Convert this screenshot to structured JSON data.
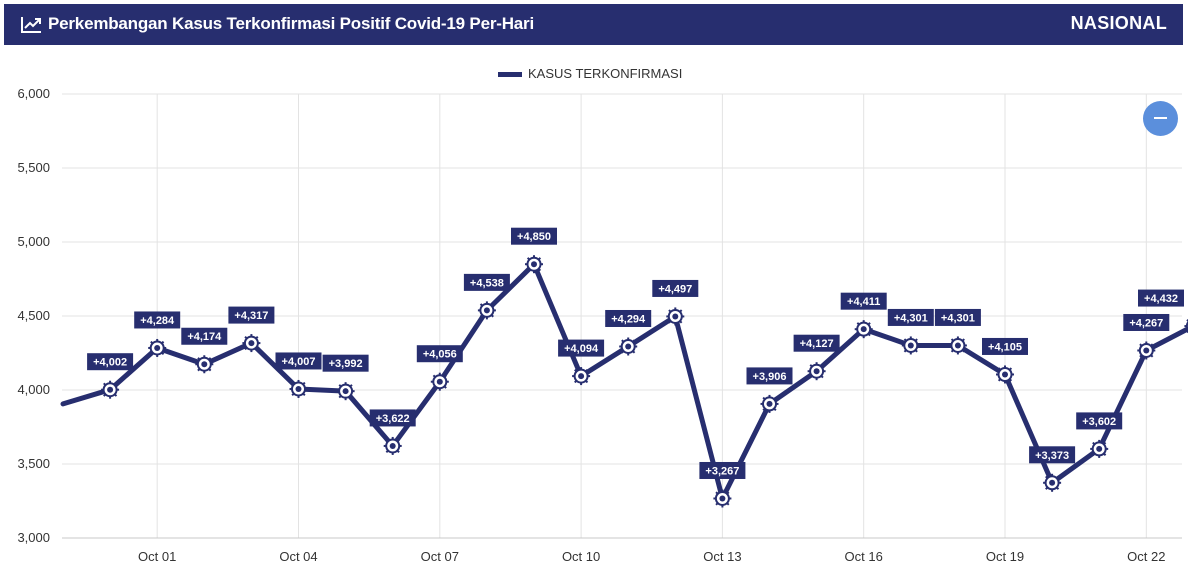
{
  "header": {
    "title": "Perkembangan Kasus Terkonfirmasi Positif Covid-19 Per-Hari",
    "scope": "NASIONAL",
    "icon": "line-chart-icon"
  },
  "zoom_button": {
    "icon": "minus-icon"
  },
  "colors": {
    "header_bg": "#272e6f",
    "series": "#272e6f",
    "label_bg": "#272e6f",
    "zoom": "#5b8fdc",
    "grid": "#e3e3e3"
  },
  "chart_data": {
    "type": "line",
    "title": "Perkembangan Kasus Terkonfirmasi Positif Covid-19 Per-Hari",
    "xlabel": "",
    "ylabel": "",
    "ylim": [
      3000,
      6000
    ],
    "yticks": [
      3000,
      3500,
      4000,
      4500,
      5000,
      5500,
      6000
    ],
    "ytick_labels": [
      "3,000",
      "3,500",
      "4,000",
      "4,500",
      "5,000",
      "5,500",
      "6,000"
    ],
    "xticks": [
      "2020-10-01",
      "2020-10-04",
      "2020-10-07",
      "2020-10-10",
      "2020-10-13",
      "2020-10-16",
      "2020-10-19",
      "2020-10-22"
    ],
    "xtick_labels": [
      "Oct 01",
      "Oct 04",
      "Oct 07",
      "Oct 10",
      "Oct 13",
      "Oct 16",
      "Oct 19",
      "Oct 22"
    ],
    "xlim": [
      "2020-09-29",
      "2020-10-23"
    ],
    "grid": true,
    "legend_position": "top-center",
    "series": [
      {
        "name": "KASUS TERKONFIRMASI",
        "points": [
          {
            "date": "2020-09-29",
            "value": 3906
          },
          {
            "date": "2020-09-30",
            "value": 4002
          },
          {
            "date": "2020-10-01",
            "value": 4284
          },
          {
            "date": "2020-10-02",
            "value": 4174
          },
          {
            "date": "2020-10-03",
            "value": 4317
          },
          {
            "date": "2020-10-04",
            "value": 4007
          },
          {
            "date": "2020-10-05",
            "value": 3992
          },
          {
            "date": "2020-10-06",
            "value": 3622
          },
          {
            "date": "2020-10-07",
            "value": 4056
          },
          {
            "date": "2020-10-08",
            "value": 4538
          },
          {
            "date": "2020-10-09",
            "value": 4850
          },
          {
            "date": "2020-10-10",
            "value": 4094
          },
          {
            "date": "2020-10-11",
            "value": 4294
          },
          {
            "date": "2020-10-12",
            "value": 4497
          },
          {
            "date": "2020-10-13",
            "value": 3267
          },
          {
            "date": "2020-10-14",
            "value": 3906
          },
          {
            "date": "2020-10-15",
            "value": 4127
          },
          {
            "date": "2020-10-16",
            "value": 4411
          },
          {
            "date": "2020-10-17",
            "value": 4301
          },
          {
            "date": "2020-10-18",
            "value": 4301
          },
          {
            "date": "2020-10-19",
            "value": 4105
          },
          {
            "date": "2020-10-20",
            "value": 3373
          },
          {
            "date": "2020-10-21",
            "value": 3602
          },
          {
            "date": "2020-10-22",
            "value": 4267
          },
          {
            "date": "2020-10-23",
            "value": 4432
          }
        ],
        "data_labels": [
          "",
          "+4,002",
          "+4,284",
          "+4,174",
          "+4,317",
          "+4,007",
          "+3,992",
          "+3,622",
          "+4,056",
          "+4,538",
          "+4,850",
          "+4,094",
          "+4,294",
          "+4,497",
          "+3,267",
          "+3,906",
          "+4,127",
          "+4,411",
          "+4,301",
          "+4,301",
          "+4,105",
          "+3,373",
          "+3,602",
          "+4,267",
          "+4,432"
        ]
      }
    ]
  }
}
